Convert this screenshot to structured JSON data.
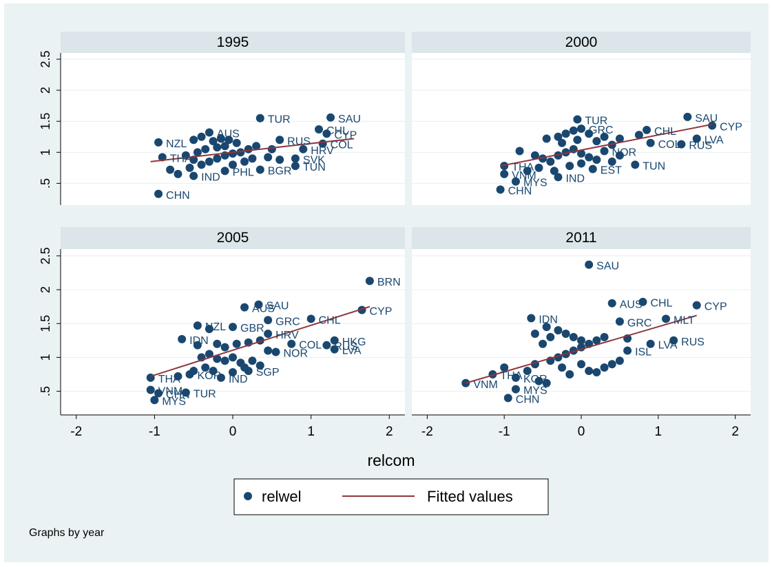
{
  "chart_data": {
    "type": "scatter",
    "facet_by": "year",
    "footnote": "Graphs by year",
    "xlabel": "relcom",
    "ylabel": "",
    "xlim": [
      -2.2,
      2.2
    ],
    "ylim": [
      0.15,
      2.6
    ],
    "xticks": [
      -2,
      -1,
      0,
      1,
      2
    ],
    "yticks": [
      0.5,
      1,
      1.5,
      2,
      2.5
    ],
    "ytick_labels": [
      ".5",
      "1",
      "1.5",
      "2",
      "2.5"
    ],
    "grid": true,
    "legend": {
      "placement": "bottom",
      "items": [
        {
          "label": "relwel",
          "kind": "marker"
        },
        {
          "label": "Fitted values",
          "kind": "line"
        }
      ]
    },
    "colors": {
      "marker": "#1a476f",
      "fit": "#90353b",
      "strip": "#dbe5ea",
      "outer_bg": "#eaf2f3",
      "grid": "#e8eef1",
      "label": "#1a476f"
    },
    "panels": [
      {
        "title": "1995",
        "fit": [
          [
            -1.05,
            0.85
          ],
          [
            1.55,
            1.22
          ]
        ],
        "points": [
          {
            "label": "TUR",
            "x": 0.35,
            "y": 1.55
          },
          {
            "label": "SAU",
            "x": 1.25,
            "y": 1.56
          },
          {
            "label": "CHL",
            "x": 1.1,
            "y": 1.37
          },
          {
            "label": "CYP",
            "x": 1.2,
            "y": 1.3
          },
          {
            "label": "AUS",
            "x": -0.3,
            "y": 1.32
          },
          {
            "label": "NZL",
            "x": -0.95,
            "y": 1.16
          },
          {
            "label": "RUS",
            "x": 0.6,
            "y": 1.2
          },
          {
            "label": "COL",
            "x": 1.15,
            "y": 1.14
          },
          {
            "label": "HRV",
            "x": 0.9,
            "y": 1.05
          },
          {
            "label": "SVK",
            "x": 0.8,
            "y": 0.9
          },
          {
            "label": "TUN",
            "x": 0.8,
            "y": 0.78
          },
          {
            "label": "BGR",
            "x": 0.35,
            "y": 0.72
          },
          {
            "label": "PHL",
            "x": -0.1,
            "y": 0.7
          },
          {
            "label": "IND",
            "x": -0.5,
            "y": 0.62
          },
          {
            "label": "THA",
            "x": -0.9,
            "y": 0.92
          },
          {
            "label": "CHN",
            "x": -0.95,
            "y": 0.33
          },
          {
            "label": "",
            "x": -0.8,
            "y": 0.72
          },
          {
            "label": "",
            "x": -0.7,
            "y": 0.65
          },
          {
            "label": "",
            "x": -0.55,
            "y": 0.75
          },
          {
            "label": "",
            "x": -0.4,
            "y": 0.8
          },
          {
            "label": "",
            "x": -0.3,
            "y": 0.85
          },
          {
            "label": "",
            "x": -0.2,
            "y": 0.9
          },
          {
            "label": "",
            "x": -0.1,
            "y": 0.95
          },
          {
            "label": "",
            "x": 0.0,
            "y": 0.98
          },
          {
            "label": "",
            "x": 0.1,
            "y": 1.0
          },
          {
            "label": "",
            "x": 0.2,
            "y": 1.05
          },
          {
            "label": "",
            "x": -0.5,
            "y": 1.2
          },
          {
            "label": "",
            "x": -0.4,
            "y": 1.25
          },
          {
            "label": "",
            "x": -0.25,
            "y": 1.18
          },
          {
            "label": "",
            "x": -0.15,
            "y": 1.22
          },
          {
            "label": "",
            "x": -0.05,
            "y": 1.2
          },
          {
            "label": "",
            "x": 0.05,
            "y": 1.15
          },
          {
            "label": "",
            "x": 0.3,
            "y": 1.1
          },
          {
            "label": "",
            "x": 0.5,
            "y": 1.05
          },
          {
            "label": "",
            "x": -0.6,
            "y": 0.95
          },
          {
            "label": "",
            "x": -0.45,
            "y": 1.0
          },
          {
            "label": "",
            "x": -0.35,
            "y": 1.05
          },
          {
            "label": "",
            "x": -0.2,
            "y": 1.08
          },
          {
            "label": "",
            "x": -0.1,
            "y": 1.1
          },
          {
            "label": "",
            "x": 0.15,
            "y": 0.85
          },
          {
            "label": "",
            "x": 0.25,
            "y": 0.9
          },
          {
            "label": "",
            "x": 0.45,
            "y": 0.92
          },
          {
            "label": "",
            "x": 0.6,
            "y": 0.88
          },
          {
            "label": "",
            "x": -0.5,
            "y": 0.88
          },
          {
            "label": "",
            "x": 0.0,
            "y": 0.8
          }
        ]
      },
      {
        "title": "2000",
        "fit": [
          [
            -1.05,
            0.78
          ],
          [
            1.7,
            1.45
          ]
        ],
        "points": [
          {
            "label": "TUR",
            "x": -0.05,
            "y": 1.53
          },
          {
            "label": "SAU",
            "x": 1.38,
            "y": 1.57
          },
          {
            "label": "CYP",
            "x": 1.7,
            "y": 1.43
          },
          {
            "label": "CHL",
            "x": 0.85,
            "y": 1.36
          },
          {
            "label": "GRC",
            "x": 0.0,
            "y": 1.38
          },
          {
            "label": "LVA",
            "x": 1.5,
            "y": 1.22
          },
          {
            "label": "RUS",
            "x": 1.3,
            "y": 1.13
          },
          {
            "label": "COL",
            "x": 0.9,
            "y": 1.15
          },
          {
            "label": "NOR",
            "x": 0.3,
            "y": 1.02
          },
          {
            "label": "TUN",
            "x": 0.7,
            "y": 0.8
          },
          {
            "label": "EST",
            "x": 0.15,
            "y": 0.73
          },
          {
            "label": "IND",
            "x": -0.3,
            "y": 0.6
          },
          {
            "label": "MYS",
            "x": -0.85,
            "y": 0.53
          },
          {
            "label": "CHN",
            "x": -1.05,
            "y": 0.4
          },
          {
            "label": "VNM",
            "x": -1.0,
            "y": 0.65
          },
          {
            "label": "THA",
            "x": -1.0,
            "y": 0.78
          },
          {
            "label": "",
            "x": -0.8,
            "y": 1.02
          },
          {
            "label": "",
            "x": -0.45,
            "y": 1.22
          },
          {
            "label": "",
            "x": -0.3,
            "y": 1.25
          },
          {
            "label": "",
            "x": -0.2,
            "y": 1.3
          },
          {
            "label": "",
            "x": -0.1,
            "y": 1.35
          },
          {
            "label": "",
            "x": 0.1,
            "y": 1.3
          },
          {
            "label": "",
            "x": 0.3,
            "y": 1.25
          },
          {
            "label": "",
            "x": 0.5,
            "y": 1.22
          },
          {
            "label": "",
            "x": 0.75,
            "y": 1.28
          },
          {
            "label": "",
            "x": -0.6,
            "y": 0.95
          },
          {
            "label": "",
            "x": -0.5,
            "y": 0.9
          },
          {
            "label": "",
            "x": -0.4,
            "y": 0.85
          },
          {
            "label": "",
            "x": -0.3,
            "y": 0.95
          },
          {
            "label": "",
            "x": -0.2,
            "y": 1.0
          },
          {
            "label": "",
            "x": -0.1,
            "y": 1.05
          },
          {
            "label": "",
            "x": 0.0,
            "y": 0.98
          },
          {
            "label": "",
            "x": 0.1,
            "y": 0.92
          },
          {
            "label": "",
            "x": 0.2,
            "y": 0.88
          },
          {
            "label": "",
            "x": 0.4,
            "y": 0.85
          },
          {
            "label": "",
            "x": 0.5,
            "y": 0.95
          },
          {
            "label": "",
            "x": -0.7,
            "y": 0.7
          },
          {
            "label": "",
            "x": -0.55,
            "y": 0.75
          },
          {
            "label": "",
            "x": -0.35,
            "y": 0.7
          },
          {
            "label": "",
            "x": -0.15,
            "y": 0.78
          },
          {
            "label": "",
            "x": 0.0,
            "y": 0.82
          },
          {
            "label": "",
            "x": -0.25,
            "y": 1.15
          },
          {
            "label": "",
            "x": 0.2,
            "y": 1.18
          },
          {
            "label": "",
            "x": 0.4,
            "y": 1.12
          },
          {
            "label": "",
            "x": -0.05,
            "y": 1.2
          }
        ]
      },
      {
        "title": "2005",
        "fit": [
          [
            -1.05,
            0.72
          ],
          [
            1.75,
            1.75
          ]
        ],
        "points": [
          {
            "label": "BRN",
            "x": 1.75,
            "y": 2.13
          },
          {
            "label": "CYP",
            "x": 1.65,
            "y": 1.7
          },
          {
            "label": "SAU",
            "x": 0.33,
            "y": 1.78
          },
          {
            "label": "AUS",
            "x": 0.15,
            "y": 1.74
          },
          {
            "label": "GRC",
            "x": 0.45,
            "y": 1.55
          },
          {
            "label": "CHL",
            "x": 1.0,
            "y": 1.57
          },
          {
            "label": "HKG",
            "x": 1.3,
            "y": 1.25
          },
          {
            "label": "RUS",
            "x": 1.2,
            "y": 1.18
          },
          {
            "label": "LVA",
            "x": 1.3,
            "y": 1.12
          },
          {
            "label": "COL",
            "x": 0.75,
            "y": 1.2
          },
          {
            "label": "NOR",
            "x": 0.55,
            "y": 1.08
          },
          {
            "label": "HRV",
            "x": 0.45,
            "y": 1.35
          },
          {
            "label": "GBR",
            "x": 0.0,
            "y": 1.45
          },
          {
            "label": "NZL",
            "x": -0.45,
            "y": 1.47
          },
          {
            "label": "IDN",
            "x": -0.65,
            "y": 1.27
          },
          {
            "label": "SGP",
            "x": 0.2,
            "y": 0.8
          },
          {
            "label": "IND",
            "x": -0.15,
            "y": 0.7
          },
          {
            "label": "KOR",
            "x": -0.55,
            "y": 0.75
          },
          {
            "label": "THA",
            "x": -1.05,
            "y": 0.7
          },
          {
            "label": "VNM",
            "x": -1.05,
            "y": 0.52
          },
          {
            "label": "TUR",
            "x": -0.6,
            "y": 0.48
          },
          {
            "label": "CHN",
            "x": -0.95,
            "y": 0.47
          },
          {
            "label": "MYS",
            "x": -1.0,
            "y": 0.37
          },
          {
            "label": "",
            "x": -0.3,
            "y": 1.42
          },
          {
            "label": "",
            "x": -0.2,
            "y": 1.2
          },
          {
            "label": "",
            "x": -0.1,
            "y": 1.15
          },
          {
            "label": "",
            "x": 0.05,
            "y": 1.2
          },
          {
            "label": "",
            "x": 0.2,
            "y": 1.22
          },
          {
            "label": "",
            "x": 0.35,
            "y": 1.25
          },
          {
            "label": "",
            "x": -0.4,
            "y": 1.0
          },
          {
            "label": "",
            "x": -0.3,
            "y": 1.05
          },
          {
            "label": "",
            "x": -0.2,
            "y": 0.98
          },
          {
            "label": "",
            "x": -0.1,
            "y": 0.95
          },
          {
            "label": "",
            "x": 0.0,
            "y": 1.0
          },
          {
            "label": "",
            "x": 0.1,
            "y": 0.92
          },
          {
            "label": "",
            "x": 0.25,
            "y": 0.95
          },
          {
            "label": "",
            "x": 0.35,
            "y": 0.88
          },
          {
            "label": "",
            "x": -0.35,
            "y": 0.85
          },
          {
            "label": "",
            "x": -0.25,
            "y": 0.8
          },
          {
            "label": "",
            "x": 0.0,
            "y": 0.78
          },
          {
            "label": "",
            "x": 0.15,
            "y": 0.85
          },
          {
            "label": "",
            "x": -0.5,
            "y": 0.8
          },
          {
            "label": "",
            "x": -0.7,
            "y": 0.72
          },
          {
            "label": "",
            "x": -0.45,
            "y": 1.18
          },
          {
            "label": "",
            "x": 0.45,
            "y": 1.1
          }
        ]
      },
      {
        "title": "2011",
        "fit": [
          [
            -1.5,
            0.62
          ],
          [
            1.5,
            1.62
          ]
        ],
        "points": [
          {
            "label": "SAU",
            "x": 0.1,
            "y": 2.37
          },
          {
            "label": "AUS",
            "x": 0.4,
            "y": 1.8
          },
          {
            "label": "CHL",
            "x": 0.8,
            "y": 1.82
          },
          {
            "label": "CYP",
            "x": 1.5,
            "y": 1.77
          },
          {
            "label": "GRC",
            "x": 0.5,
            "y": 1.53
          },
          {
            "label": "MLT",
            "x": 1.1,
            "y": 1.57
          },
          {
            "label": "IDN",
            "x": -0.65,
            "y": 1.58
          },
          {
            "label": "RUS",
            "x": 1.2,
            "y": 1.25
          },
          {
            "label": "LVA",
            "x": 0.9,
            "y": 1.2
          },
          {
            "label": "ISL",
            "x": 0.6,
            "y": 1.1
          },
          {
            "label": "CHN",
            "x": -0.95,
            "y": 0.4
          },
          {
            "label": "MYS",
            "x": -0.85,
            "y": 0.53
          },
          {
            "label": "VNM",
            "x": -1.5,
            "y": 0.62
          },
          {
            "label": "KOR",
            "x": -0.85,
            "y": 0.7
          },
          {
            "label": "THA",
            "x": -1.15,
            "y": 0.75
          },
          {
            "label": "",
            "x": -1.0,
            "y": 0.85
          },
          {
            "label": "",
            "x": -0.7,
            "y": 0.8
          },
          {
            "label": "",
            "x": -0.55,
            "y": 0.65
          },
          {
            "label": "",
            "x": -0.45,
            "y": 0.62
          },
          {
            "label": "",
            "x": -0.6,
            "y": 0.9
          },
          {
            "label": "",
            "x": -0.4,
            "y": 0.95
          },
          {
            "label": "",
            "x": -0.3,
            "y": 1.0
          },
          {
            "label": "",
            "x": -0.2,
            "y": 1.05
          },
          {
            "label": "",
            "x": -0.1,
            "y": 1.1
          },
          {
            "label": "",
            "x": 0.0,
            "y": 1.15
          },
          {
            "label": "",
            "x": 0.1,
            "y": 1.2
          },
          {
            "label": "",
            "x": 0.2,
            "y": 1.25
          },
          {
            "label": "",
            "x": 0.3,
            "y": 1.3
          },
          {
            "label": "",
            "x": -0.5,
            "y": 1.2
          },
          {
            "label": "",
            "x": -0.4,
            "y": 1.3
          },
          {
            "label": "",
            "x": -0.3,
            "y": 1.4
          },
          {
            "label": "",
            "x": -0.2,
            "y": 1.35
          },
          {
            "label": "",
            "x": -0.1,
            "y": 1.3
          },
          {
            "label": "",
            "x": 0.0,
            "y": 1.25
          },
          {
            "label": "",
            "x": -0.45,
            "y": 1.45
          },
          {
            "label": "",
            "x": -0.6,
            "y": 1.35
          },
          {
            "label": "",
            "x": 0.1,
            "y": 0.8
          },
          {
            "label": "",
            "x": 0.2,
            "y": 0.78
          },
          {
            "label": "",
            "x": 0.3,
            "y": 0.85
          },
          {
            "label": "",
            "x": 0.4,
            "y": 0.9
          },
          {
            "label": "",
            "x": 0.5,
            "y": 0.95
          },
          {
            "label": "",
            "x": -0.15,
            "y": 0.75
          },
          {
            "label": "",
            "x": 0.0,
            "y": 0.9
          },
          {
            "label": "",
            "x": -0.25,
            "y": 0.85
          },
          {
            "label": "",
            "x": 0.6,
            "y": 1.28
          }
        ]
      }
    ]
  }
}
